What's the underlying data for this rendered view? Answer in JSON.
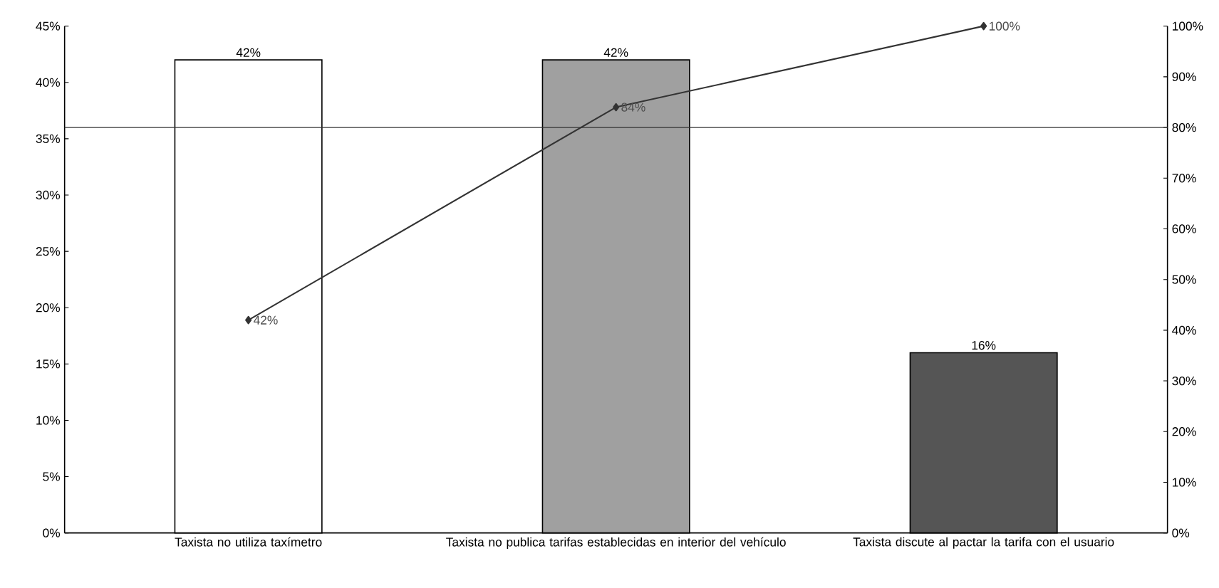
{
  "chart_data": {
    "type": "bar",
    "categories": [
      "Taxista no utiliza taxímetro",
      "Taxista no publica tarifas establecidas en interior del vehículo",
      "Taxista discute al pactar la tarifa con el usuario"
    ],
    "series": [
      {
        "values": [
          42,
          42,
          16
        ],
        "colors": [
          "#ffffff",
          "#a0a0a0",
          "#555555"
        ],
        "value_labels": [
          "42%",
          "42%",
          "16%"
        ]
      },
      {
        "type": "line",
        "axis": "y2",
        "color": "#333333",
        "marker": "diamond",
        "values": [
          42,
          84,
          100
        ],
        "value_labels": [
          "42%",
          "84%",
          "100%"
        ]
      }
    ],
    "ylim": [
      0,
      45
    ],
    "yticks": [
      {
        "value": 0,
        "label": "0%"
      },
      {
        "value": 5,
        "label": "5%"
      },
      {
        "value": 10,
        "label": "10%"
      },
      {
        "value": 15,
        "label": "15%"
      },
      {
        "value": 20,
        "label": "20%"
      },
      {
        "value": 25,
        "label": "25%"
      },
      {
        "value": 30,
        "label": "30%"
      },
      {
        "value": 35,
        "label": "35%"
      },
      {
        "value": 40,
        "label": "40%"
      },
      {
        "value": 45,
        "label": "45%"
      }
    ],
    "y2lim": [
      0,
      100
    ],
    "y2ticks": [
      {
        "value": 0,
        "label": "0%"
      },
      {
        "value": 10,
        "label": "10%"
      },
      {
        "value": 20,
        "label": "20%"
      },
      {
        "value": 30,
        "label": "30%"
      },
      {
        "value": 40,
        "label": "40%"
      },
      {
        "value": 50,
        "label": "50%"
      },
      {
        "value": 60,
        "label": "60%"
      },
      {
        "value": 70,
        "label": "70%"
      },
      {
        "value": 80,
        "label": "80%"
      },
      {
        "value": 90,
        "label": "90%"
      },
      {
        "value": 100,
        "label": "100%"
      }
    ],
    "ref_lines": [
      {
        "axis": "y2",
        "value": 80,
        "color": "#333333"
      }
    ]
  }
}
